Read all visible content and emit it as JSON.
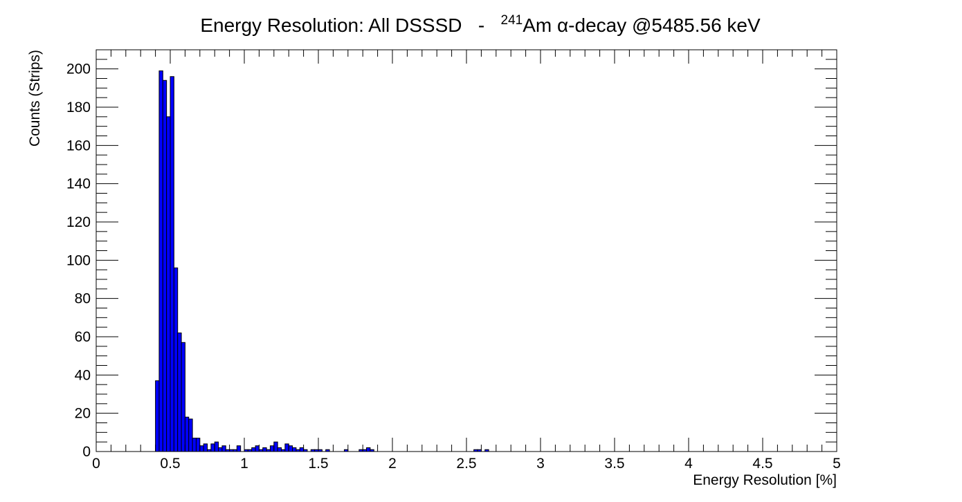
{
  "chart_data": {
    "type": "bar",
    "title": {
      "prefix": "Energy Resolution: All DSSSD   -   ",
      "isotope_mass": "241",
      "suffix": "Am α-decay @5485.56 keV"
    },
    "xlabel": "Energy Resolution [%]",
    "ylabel": "Counts (Strips)",
    "xlim": [
      0,
      5
    ],
    "ylim": [
      0,
      210
    ],
    "bin_width": 0.025,
    "x_ticks": [
      0,
      0.5,
      1,
      1.5,
      2,
      2.5,
      3,
      3.5,
      4,
      4.5,
      5
    ],
    "x_tick_labels": [
      "0",
      "0.5",
      "1",
      "1.5",
      "2",
      "2.5",
      "3",
      "3.5",
      "4",
      "4.5",
      "5"
    ],
    "y_ticks": [
      0,
      20,
      40,
      60,
      80,
      100,
      120,
      140,
      160,
      180,
      200
    ],
    "y_tick_labels": [
      "0",
      "20",
      "40",
      "60",
      "80",
      "100",
      "120",
      "140",
      "160",
      "180",
      "200"
    ],
    "bin_low_edges": [
      0.4,
      0.425,
      0.45,
      0.475,
      0.5,
      0.525,
      0.55,
      0.575,
      0.6,
      0.625,
      0.65,
      0.675,
      0.7,
      0.725,
      0.75,
      0.775,
      0.8,
      0.825,
      0.85,
      0.875,
      0.9,
      0.925,
      0.95,
      0.975,
      1.0,
      1.025,
      1.05,
      1.075,
      1.1,
      1.125,
      1.15,
      1.175,
      1.2,
      1.225,
      1.25,
      1.275,
      1.3,
      1.325,
      1.35,
      1.375,
      1.4,
      1.425,
      1.45,
      1.475,
      1.5,
      1.525,
      1.55,
      1.675,
      1.775,
      1.8,
      1.825,
      1.85,
      2.55,
      2.575,
      2.625
    ],
    "values": [
      37,
      199,
      194,
      175,
      196,
      96,
      62,
      57,
      18,
      17,
      7,
      7,
      3,
      4,
      1,
      4,
      5,
      2,
      3,
      1,
      1,
      1,
      3,
      0,
      1,
      1,
      2,
      3,
      1,
      2,
      1,
      3,
      5,
      2,
      1,
      4,
      3,
      2,
      1,
      2,
      1,
      0,
      1,
      1,
      1,
      0,
      1,
      1,
      1,
      1,
      2,
      1,
      1,
      1,
      1
    ],
    "fill_color": "#0000ff",
    "edge_color": "#000000",
    "grid": false,
    "legend": "none"
  }
}
